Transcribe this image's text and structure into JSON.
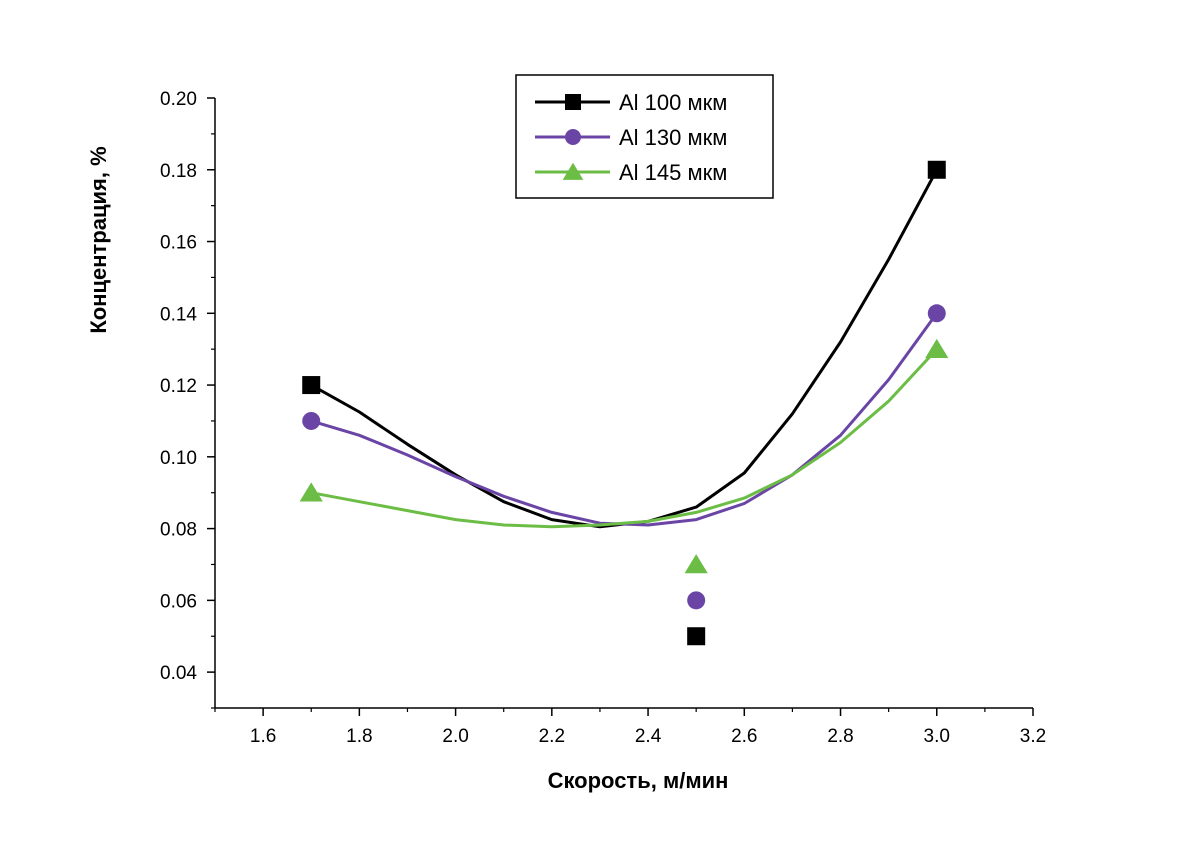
{
  "chart_data": {
    "type": "scatter",
    "title": "",
    "xlabel": "Скорость, м/мин",
    "ylabel": "Концентрация, %",
    "xlim": [
      1.5,
      3.2
    ],
    "ylim": [
      0.03,
      0.2
    ],
    "xticks": [
      1.6,
      1.8,
      2.0,
      2.2,
      2.4,
      2.6,
      2.8,
      3.0,
      3.2
    ],
    "xtick_labels": [
      "1.6",
      "1.8",
      "2.0",
      "2.2",
      "2.4",
      "2.6",
      "2.8",
      "3.0",
      "3.2"
    ],
    "yticks": [
      0.04,
      0.06,
      0.08,
      0.1,
      0.12,
      0.14,
      0.16,
      0.18,
      0.2
    ],
    "ytick_labels": [
      "0.04",
      "0.06",
      "0.08",
      "0.10",
      "0.12",
      "0.14",
      "0.16",
      "0.18",
      "0.20"
    ],
    "legend_position": "top-center",
    "series": [
      {
        "name": "Al 100 мкм",
        "marker": "square",
        "color": "#000000",
        "x": [
          1.7,
          2.5,
          3.0
        ],
        "y": [
          0.12,
          0.05,
          0.18
        ],
        "trend_x": [
          1.7,
          1.8,
          1.9,
          2.0,
          2.1,
          2.2,
          2.3,
          2.4,
          2.5,
          2.6,
          2.7,
          2.8,
          2.9,
          3.0
        ],
        "trend_y": [
          0.12,
          0.1125,
          0.1035,
          0.095,
          0.0875,
          0.0825,
          0.0805,
          0.082,
          0.086,
          0.0955,
          0.112,
          0.132,
          0.155,
          0.18
        ]
      },
      {
        "name": "Al 130 мкм",
        "marker": "circle",
        "color": "#6a45a6",
        "x": [
          1.7,
          2.5,
          3.0
        ],
        "y": [
          0.11,
          0.06,
          0.14
        ],
        "trend_x": [
          1.7,
          1.8,
          1.9,
          2.0,
          2.1,
          2.2,
          2.3,
          2.4,
          2.5,
          2.6,
          2.7,
          2.8,
          2.9,
          3.0
        ],
        "trend_y": [
          0.11,
          0.106,
          0.1005,
          0.0945,
          0.089,
          0.0845,
          0.0815,
          0.081,
          0.0825,
          0.087,
          0.095,
          0.106,
          0.1215,
          0.14
        ]
      },
      {
        "name": "Al 145 мкм",
        "marker": "triangle",
        "color": "#6cbd45",
        "x": [
          1.7,
          2.5,
          3.0
        ],
        "y": [
          0.09,
          0.07,
          0.13
        ],
        "trend_x": [
          1.7,
          1.8,
          1.9,
          2.0,
          2.1,
          2.2,
          2.3,
          2.4,
          2.5,
          2.6,
          2.7,
          2.8,
          2.9,
          3.0
        ],
        "trend_y": [
          0.09,
          0.0875,
          0.085,
          0.0825,
          0.081,
          0.0805,
          0.081,
          0.082,
          0.0845,
          0.0885,
          0.095,
          0.104,
          0.1155,
          0.13
        ]
      }
    ]
  }
}
